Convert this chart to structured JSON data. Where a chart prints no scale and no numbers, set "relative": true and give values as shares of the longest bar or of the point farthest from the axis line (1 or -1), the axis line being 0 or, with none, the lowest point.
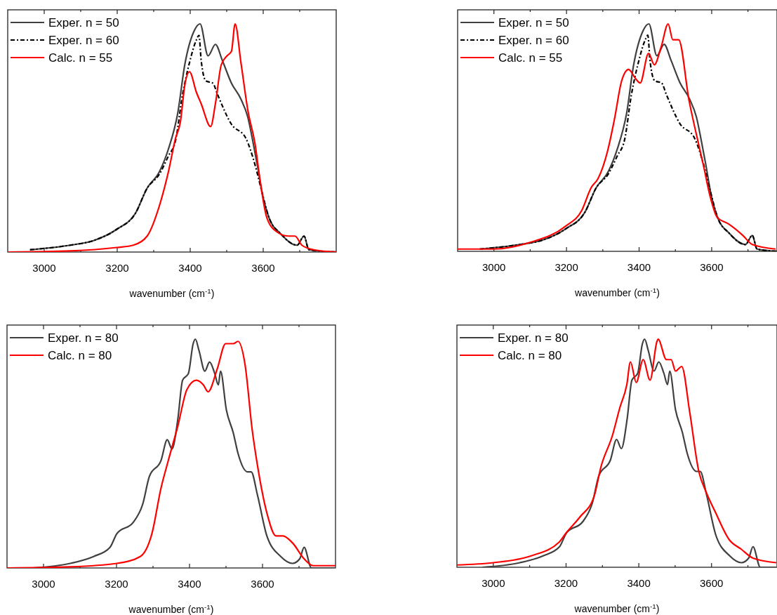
{
  "chart_data": [
    {
      "type": "line",
      "relative": true,
      "xlabel": "wavenumber (cm$^{-1}$)",
      "xlim": [
        2900,
        3800
      ],
      "xticks": [
        3000,
        {
          "value": 3100,
          "label": null
        },
        3200,
        {
          "value": 3300,
          "label": null
        },
        3400,
        {
          "value": 3500,
          "label": null
        },
        3600,
        {
          "value": 3700,
          "label": null
        }
      ],
      "tick_labels": "x",
      "grid": false,
      "legend": "top left",
      "series": [
        {
          "name": "Exper. n = 50",
          "color": "#404040",
          "line_style": "solid",
          "x": [
            2961,
            3071,
            3135,
            3199,
            3250,
            3282,
            3315,
            3340,
            3366,
            3385,
            3411,
            3427,
            3449,
            3469,
            3488,
            3513,
            3539,
            3558,
            3571,
            3584,
            3597,
            3616,
            3648,
            3693,
            3712,
            3725,
            3800
          ],
          "values": [
            0.01,
            0.03,
            0.05,
            0.1,
            0.17,
            0.28,
            0.35,
            0.45,
            0.61,
            0.82,
            0.97,
            1,
            0.86,
            0.91,
            0.84,
            0.74,
            0.67,
            0.59,
            0.49,
            0.38,
            0.26,
            0.15,
            0.08,
            0.03,
            0.07,
            0.01,
            0
          ]
        },
        {
          "name": "Exper. n = 60",
          "color": "#000000",
          "line_style": "dashdot",
          "x": [
            2961,
            3071,
            3135,
            3199,
            3250,
            3282,
            3315,
            3340,
            3360,
            3379,
            3398,
            3417,
            3424,
            3430,
            3443,
            3462,
            3475,
            3513,
            3552,
            3578,
            3597,
            3616,
            3648,
            3693,
            3712,
            3725,
            3800
          ],
          "values": [
            0.01,
            0.03,
            0.05,
            0.1,
            0.17,
            0.28,
            0.34,
            0.42,
            0.49,
            0.69,
            0.83,
            0.93,
            0.95,
            0.84,
            0.75,
            0.74,
            0.69,
            0.56,
            0.5,
            0.38,
            0.26,
            0.15,
            0.08,
            0.03,
            0.07,
            0.01,
            0
          ]
        },
        {
          "name": "Calc. n = 55",
          "color": "#ff0000",
          "line_style": "solid",
          "x": [
            2900,
            3071,
            3199,
            3244,
            3282,
            3315,
            3340,
            3360,
            3373,
            3385,
            3398,
            3417,
            3430,
            3456,
            3469,
            3485,
            3501,
            3513,
            3523,
            3539,
            3558,
            3578,
            3590,
            3610,
            3636,
            3668,
            3687,
            3706,
            3738,
            3800
          ],
          "values": [
            0,
            0.005,
            0.02,
            0.03,
            0.07,
            0.2,
            0.35,
            0.5,
            0.57,
            0.73,
            0.79,
            0.7,
            0.65,
            0.55,
            0.65,
            0.82,
            0.86,
            0.88,
            1,
            0.83,
            0.62,
            0.47,
            0.33,
            0.15,
            0.09,
            0.07,
            0.07,
            0.03,
            0.01,
            0
          ]
        }
      ]
    },
    {
      "type": "line",
      "relative": true,
      "xlabel": "wavenumber (cm$^{-1}$)",
      "xlim": [
        2900,
        3780
      ],
      "xticks": [
        3000,
        {
          "value": 3100,
          "label": null
        },
        3200,
        {
          "value": 3300,
          "label": null
        },
        3400,
        {
          "value": 3500,
          "label": null
        },
        3600,
        {
          "value": 3700,
          "label": null
        }
      ],
      "tick_labels": "x",
      "grid": false,
      "legend": "top left",
      "series": [
        {
          "name": "Exper. n = 50",
          "color": "#404040",
          "line_style": "solid",
          "x": [
            2961,
            3071,
            3135,
            3199,
            3250,
            3282,
            3315,
            3340,
            3366,
            3385,
            3411,
            3427,
            3449,
            3469,
            3488,
            3513,
            3539,
            3558,
            3571,
            3584,
            3597,
            3616,
            3648,
            3693,
            3712,
            3725,
            3780
          ],
          "values": [
            0.01,
            0.03,
            0.05,
            0.1,
            0.17,
            0.28,
            0.35,
            0.45,
            0.61,
            0.82,
            0.97,
            1,
            0.86,
            0.91,
            0.84,
            0.74,
            0.67,
            0.59,
            0.49,
            0.38,
            0.26,
            0.15,
            0.08,
            0.03,
            0.07,
            0.01,
            0
          ]
        },
        {
          "name": "Exper. n = 60",
          "color": "#000000",
          "line_style": "dashdot",
          "x": [
            2961,
            3071,
            3135,
            3199,
            3250,
            3282,
            3315,
            3340,
            3360,
            3379,
            3398,
            3417,
            3424,
            3430,
            3443,
            3462,
            3475,
            3513,
            3552,
            3578,
            3597,
            3616,
            3648,
            3693,
            3712,
            3725,
            3780
          ],
          "values": [
            0.01,
            0.03,
            0.05,
            0.1,
            0.17,
            0.28,
            0.34,
            0.42,
            0.49,
            0.69,
            0.83,
            0.93,
            0.95,
            0.84,
            0.75,
            0.74,
            0.69,
            0.56,
            0.5,
            0.38,
            0.26,
            0.15,
            0.08,
            0.03,
            0.07,
            0.01,
            0
          ]
        },
        {
          "name": "Calc. n = 55",
          "color": "#ff0000",
          "line_style": "solid",
          "x": [
            2900,
            3000,
            3101,
            3197,
            3242,
            3268,
            3287,
            3313,
            3332,
            3352,
            3371,
            3390,
            3403,
            3426,
            3442,
            3461,
            3480,
            3493,
            3509,
            3538,
            3557,
            3577,
            3596,
            3615,
            3647,
            3686,
            3712,
            3776
          ],
          "values": [
            0.01,
            0.01,
            0.04,
            0.11,
            0.18,
            0.28,
            0.32,
            0.44,
            0.58,
            0.75,
            0.8,
            0.76,
            0.74,
            0.87,
            0.82,
            0.9,
            1,
            0.93,
            0.93,
            0.66,
            0.52,
            0.38,
            0.24,
            0.15,
            0.12,
            0.07,
            0.03,
            0.01
          ]
        }
      ]
    },
    {
      "type": "line",
      "relative": true,
      "xlabel": "wavenumber (cm$^{-1}$)",
      "xlim": [
        2900,
        3800
      ],
      "xticks": [
        3000,
        {
          "value": 3100,
          "label": null
        },
        3200,
        {
          "value": 3300,
          "label": null
        },
        3400,
        {
          "value": 3500,
          "label": null
        },
        3600,
        {
          "value": 3700,
          "label": null
        }
      ],
      "tick_labels": "x",
      "grid": false,
      "legend": "top left",
      "series": [
        {
          "name": "Exper. n = 80",
          "color": "#404040",
          "line_style": "solid",
          "x": [
            2970,
            3073,
            3137,
            3182,
            3201,
            3246,
            3272,
            3290,
            3322,
            3339,
            3352,
            3368,
            3381,
            3397,
            3410,
            3416,
            3426,
            3442,
            3455,
            3469,
            3479,
            3485,
            3501,
            3520,
            3533,
            3559,
            3569,
            3586,
            3612,
            3650,
            3682,
            3702,
            3714,
            3734,
            3800
          ],
          "values": [
            0,
            0.02,
            0.05,
            0.09,
            0.15,
            0.2,
            0.28,
            0.4,
            0.47,
            0.56,
            0.52,
            0.65,
            0.82,
            0.85,
            0.98,
            1,
            0.95,
            0.86,
            0.9,
            0.85,
            0.8,
            0.86,
            0.69,
            0.59,
            0.5,
            0.42,
            0.42,
            0.32,
            0.14,
            0.05,
            0.02,
            0.04,
            0.09,
            0,
            0
          ]
        },
        {
          "name": "Calc. n = 80",
          "color": "#ff0000",
          "line_style": "solid",
          "x": [
            2900,
            3073,
            3201,
            3265,
            3297,
            3322,
            3342,
            3368,
            3393,
            3419,
            3438,
            3451,
            3476,
            3499,
            3520,
            3533,
            3552,
            3572,
            3586,
            3612,
            3637,
            3656,
            3682,
            3714,
            3739,
            3800
          ],
          "values": [
            0,
            0.005,
            0.02,
            0.05,
            0.15,
            0.35,
            0.47,
            0.62,
            0.78,
            0.82,
            0.8,
            0.77,
            0.87,
            0.98,
            0.98,
            0.99,
            0.89,
            0.6,
            0.45,
            0.24,
            0.14,
            0.14,
            0.11,
            0.04,
            0.01,
            0.01
          ]
        }
      ]
    },
    {
      "type": "line",
      "relative": true,
      "xlabel": "wavenumber (cm$^{-1}$)",
      "xlim": [
        2900,
        3780
      ],
      "xticks": [
        3000,
        {
          "value": 3100,
          "label": null
        },
        3200,
        {
          "value": 3300,
          "label": null
        },
        3400,
        {
          "value": 3500,
          "label": null
        },
        3600,
        {
          "value": 3700,
          "label": null
        }
      ],
      "tick_labels": "x",
      "grid": false,
      "legend": "top left",
      "series": [
        {
          "name": "Exper. n = 80",
          "color": "#404040",
          "line_style": "solid",
          "x": [
            2970,
            3073,
            3137,
            3182,
            3201,
            3246,
            3272,
            3290,
            3322,
            3339,
            3352,
            3368,
            3381,
            3397,
            3410,
            3416,
            3426,
            3442,
            3455,
            3469,
            3479,
            3485,
            3501,
            3520,
            3533,
            3559,
            3569,
            3586,
            3612,
            3650,
            3682,
            3702,
            3714,
            3734,
            3780
          ],
          "values": [
            0,
            0.02,
            0.05,
            0.09,
            0.15,
            0.2,
            0.28,
            0.4,
            0.47,
            0.56,
            0.52,
            0.65,
            0.82,
            0.85,
            0.98,
            1,
            0.95,
            0.86,
            0.9,
            0.85,
            0.8,
            0.86,
            0.69,
            0.59,
            0.5,
            0.42,
            0.42,
            0.32,
            0.14,
            0.05,
            0.02,
            0.04,
            0.09,
            0,
            0
          ]
        },
        {
          "name": "Calc. n = 80",
          "color": "#ff0000",
          "line_style": "solid",
          "x": [
            2900,
            3000,
            3104,
            3181,
            3200,
            3238,
            3277,
            3296,
            3328,
            3348,
            3367,
            3377,
            3393,
            3412,
            3431,
            3450,
            3453,
            3476,
            3489,
            3501,
            3518,
            3540,
            3565,
            3585,
            3611,
            3649,
            3681,
            3714,
            3778
          ],
          "values": [
            0.01,
            0.02,
            0.05,
            0.11,
            0.15,
            0.22,
            0.31,
            0.44,
            0.58,
            0.7,
            0.8,
            0.9,
            0.81,
            0.91,
            0.82,
            0.99,
            1,
            0.91,
            0.91,
            0.86,
            0.88,
            0.68,
            0.42,
            0.33,
            0.24,
            0.12,
            0.08,
            0.04,
            0.02
          ]
        }
      ]
    }
  ]
}
